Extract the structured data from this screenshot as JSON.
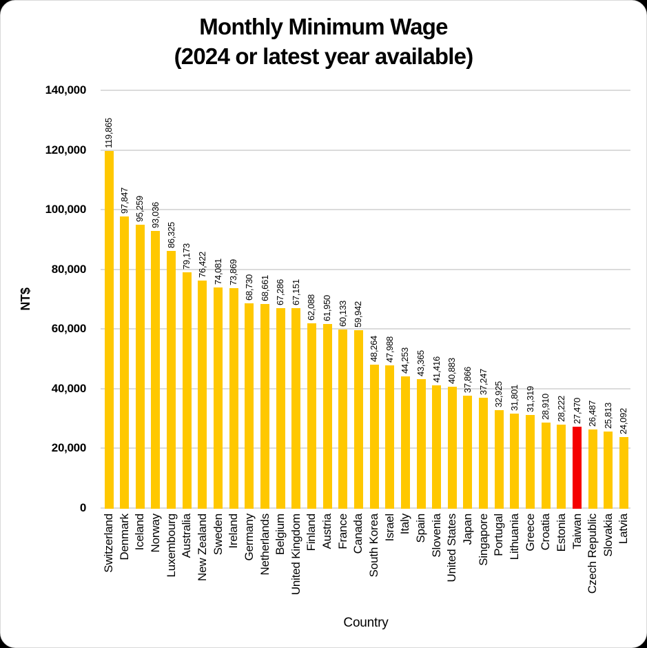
{
  "title": {
    "line1": "Monthly Minimum Wage",
    "line2": "(2024 or latest year available)"
  },
  "axes": {
    "y_label": "NT$",
    "x_label": "Country"
  },
  "colors": {
    "bar": "#FFC800",
    "highlight": "#F50000",
    "gridline": "#DBDBDB",
    "text": "#000000",
    "card_background": "#FFFFFF",
    "page_background": "#000000"
  },
  "chart_data": {
    "type": "bar",
    "title": "Monthly Minimum Wage (2024 or latest year available)",
    "xlabel": "Country",
    "ylabel": "NT$",
    "ylim": [
      0,
      140000
    ],
    "y_ticks": [
      0,
      20000,
      40000,
      60000,
      80000,
      100000,
      120000,
      140000
    ],
    "grid": "horizontal",
    "legend": "none",
    "value_labels": "rotated, thousands-comma",
    "categories": [
      "Switzerland",
      "Denmark",
      "Iceland",
      "Norway",
      "Luxembourg",
      "Australia",
      "New Zealand",
      "Sweden",
      "Ireland",
      "Germany",
      "Netherlands",
      "Belgium",
      "United Kingdom",
      "Finland",
      "Austria",
      "France",
      "Canada",
      "South Korea",
      "Israel",
      "Italy",
      "Spain",
      "Slovenia",
      "United States",
      "Japan",
      "Singapore",
      "Portugal",
      "Lithuania",
      "Greece",
      "Croatia",
      "Estonia",
      "Taiwan",
      "Czech Republic",
      "Slovakia",
      "Latvia"
    ],
    "values": [
      119865,
      97847,
      95259,
      93036,
      86325,
      79173,
      76422,
      74081,
      73869,
      68730,
      68661,
      67286,
      67151,
      62088,
      61950,
      60133,
      59942,
      48264,
      47988,
      44253,
      43365,
      41416,
      40883,
      37866,
      37247,
      32925,
      31801,
      31319,
      28910,
      28222,
      27470,
      26487,
      25813,
      24092
    ],
    "highlight_index": 30,
    "highlight_category": "Taiwan",
    "bar_color": "#FFC800",
    "highlight_color": "#F50000"
  }
}
